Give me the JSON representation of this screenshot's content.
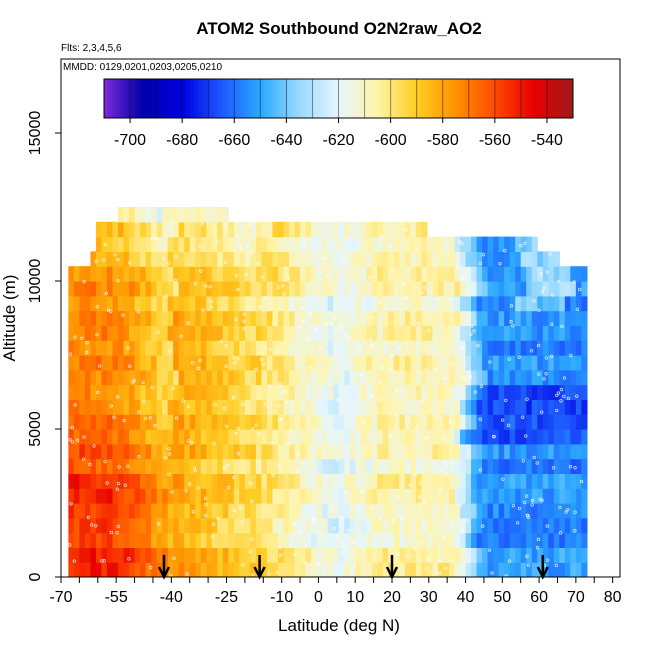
{
  "chart_data": {
    "type": "heatmap",
    "title": "ATOM2 Southbound O2N2raw_AO2",
    "flights_note": "Flts: 2,3,4,5,6",
    "dates_note": "MMDD: 0129,0201,0203,0205,0210",
    "xlabel": "Latitude (deg N)",
    "ylabel": "Altitude (m)",
    "xlim": [
      -70,
      82
    ],
    "ylim": [
      0,
      17500
    ],
    "x_tick_values": [
      -70,
      -55,
      -40,
      -25,
      -10,
      0,
      10,
      20,
      30,
      40,
      50,
      60,
      70,
      80
    ],
    "x_tick_labels": [
      "-70",
      "-55",
      "-40",
      "-25",
      "-10",
      "0",
      "10",
      "20",
      "30",
      "40",
      "50",
      "60",
      "70",
      "80"
    ],
    "x_minor_ticks": [
      -65,
      -60,
      -50,
      -45,
      -35,
      -30,
      -20,
      -15,
      -5,
      5,
      15,
      25,
      35,
      45,
      55,
      65,
      75
    ],
    "y_tick_values": [
      0,
      5000,
      10000,
      15000
    ],
    "y_tick_labels": [
      "0",
      "5000",
      "10000",
      "15000"
    ],
    "colorbar": {
      "range": [
        -710,
        -530
      ],
      "tick_values": [
        -700,
        -680,
        -660,
        -640,
        -620,
        -600,
        -580,
        -560,
        -540
      ],
      "tick_labels": [
        "-700",
        "-680",
        "-660",
        "-640",
        "-620",
        "-600",
        "-580",
        "-560",
        "-540"
      ],
      "colors": [
        "#7B2BDB",
        "#0000AA",
        "#0000E0",
        "#1C57FF",
        "#2AA8FF",
        "#9ADAFF",
        "#E6F6FF",
        "#FFF4A8",
        "#FFCC22",
        "#FF9200",
        "#FF4A00",
        "#E80000",
        "#9E1A1A"
      ]
    },
    "profile_arrows_lat": [
      -42,
      -16,
      20,
      61
    ],
    "field_summary": [
      {
        "lat_range": [
          -68,
          -50
        ],
        "alt_range": [
          0,
          3500
        ],
        "value": -557
      },
      {
        "lat_range": [
          -68,
          -40
        ],
        "alt_range": [
          3500,
          10500
        ],
        "value": -580
      },
      {
        "lat_range": [
          -40,
          -15
        ],
        "alt_range": [
          0,
          10500
        ],
        "value": -593
      },
      {
        "lat_range": [
          -15,
          10
        ],
        "alt_range": [
          0,
          12000
        ],
        "value": -616
      },
      {
        "lat_range": [
          10,
          40
        ],
        "alt_range": [
          0,
          11000
        ],
        "value": -607
      },
      {
        "lat_range": [
          40,
          72
        ],
        "alt_range": [
          0,
          10500
        ],
        "value": -657
      }
    ]
  }
}
